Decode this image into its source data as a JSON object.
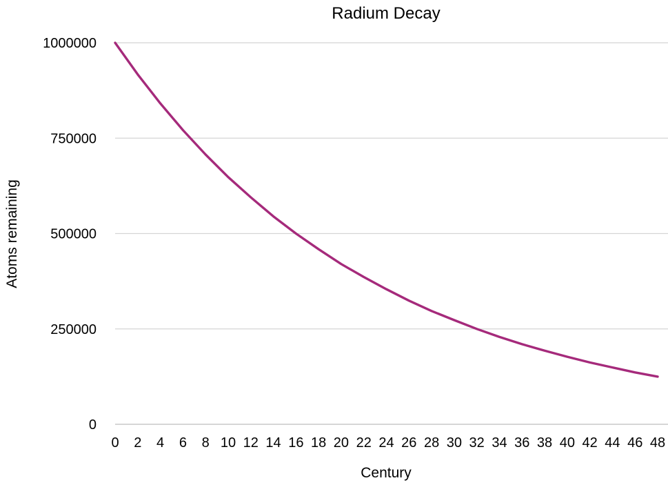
{
  "chart_data": {
    "type": "line",
    "title": "Radium Decay",
    "xlabel": "Century",
    "ylabel": "Atoms remaining",
    "xlim": [
      0,
      48
    ],
    "ylim": [
      0,
      1000000
    ],
    "x_ticks": [
      0,
      2,
      4,
      6,
      8,
      10,
      12,
      14,
      16,
      18,
      20,
      22,
      24,
      26,
      28,
      30,
      32,
      34,
      36,
      38,
      40,
      42,
      44,
      46,
      48
    ],
    "y_ticks": [
      0,
      250000,
      500000,
      750000,
      1000000
    ],
    "grid": "horizontal",
    "legend": "none",
    "series": [
      {
        "color": "#a52a7b",
        "x": [
          0,
          2,
          4,
          6,
          8,
          10,
          12,
          14,
          16,
          18,
          20,
          22,
          24,
          26,
          28,
          30,
          32,
          34,
          36,
          38,
          40,
          42,
          44,
          46,
          48
        ],
        "values": [
          1000000,
          917000,
          841000,
          771000,
          707000,
          648000,
          595000,
          545000,
          500000,
          459000,
          420000,
          386000,
          354000,
          324000,
          297000,
          273000,
          250000,
          229000,
          210000,
          193000,
          177000,
          162000,
          149000,
          136000,
          125000
        ]
      }
    ]
  }
}
